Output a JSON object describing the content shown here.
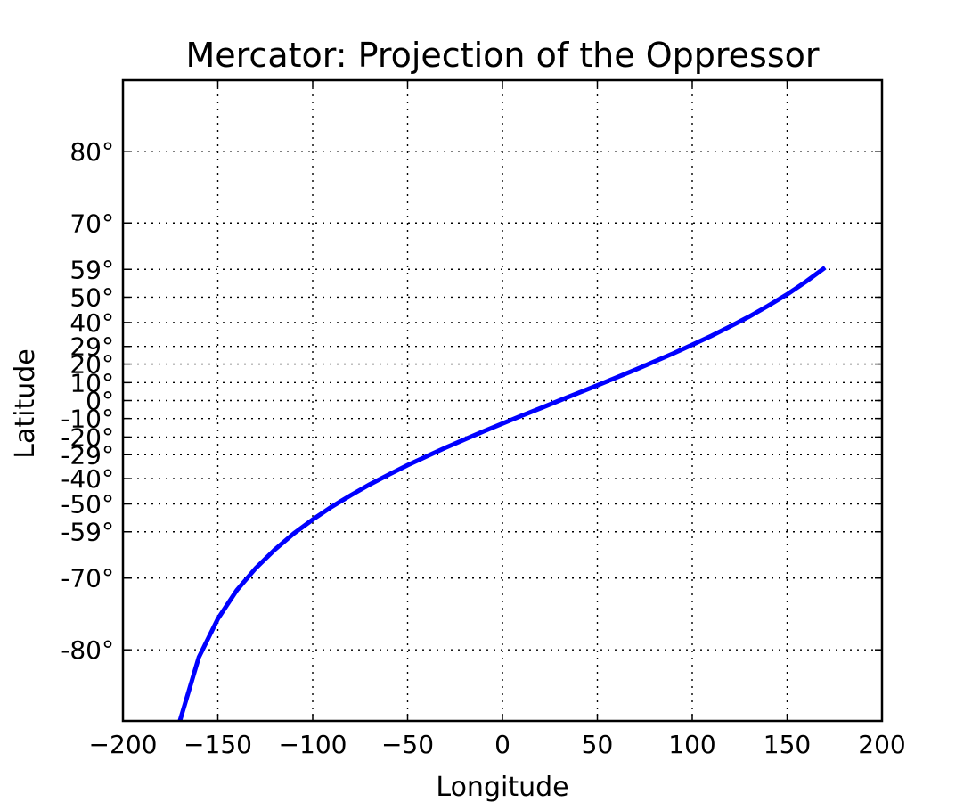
{
  "chart_data": {
    "type": "line",
    "title": "Mercator: Projection of the Oppressor",
    "xlabel": "Longitude",
    "ylabel": "Latitude",
    "xlim": [
      -200,
      200
    ],
    "y_scale": "mercator",
    "ylim_degrees": [
      -85,
      85
    ],
    "grid": true,
    "x_ticks": [
      -200,
      -150,
      -100,
      -50,
      0,
      50,
      100,
      150,
      200
    ],
    "x_tick_labels": [
      "−200",
      "−150",
      "−100",
      "−50",
      "0",
      "50",
      "100",
      "150",
      "200"
    ],
    "y_ticks": [
      -80,
      -70,
      -59,
      -50,
      -40,
      -29,
      -20,
      -10,
      0,
      10,
      20,
      29,
      40,
      50,
      59,
      70,
      80
    ],
    "y_tick_labels": [
      "-80°",
      "-70°",
      "-59°",
      "-50°",
      "-40°",
      "-29°",
      "-20°",
      "-10°",
      "0°",
      "10°",
      "20°",
      "29°",
      "40°",
      "50°",
      "59°",
      "70°",
      "80°"
    ],
    "series": [
      {
        "color": "#0000ff",
        "x": [
          -170,
          -160,
          -150,
          -140,
          -130,
          -120,
          -110,
          -100,
          -90,
          -80,
          -70,
          -60,
          -50,
          -40,
          -30,
          -20,
          -10,
          0,
          10,
          20,
          30,
          40,
          50,
          60,
          70,
          80,
          90,
          100,
          110,
          120,
          130,
          140,
          150,
          160,
          170
        ],
        "y": [
          -85,
          -80.7,
          -76.5,
          -72.2,
          -68,
          -63.8,
          -59.5,
          -55.3,
          -51,
          -46.8,
          -42.5,
          -38.3,
          -34,
          -29.8,
          -25.5,
          -21.3,
          -17,
          -12.8,
          -8.5,
          -4.3,
          0,
          4.3,
          8.5,
          12.8,
          17,
          21.3,
          25.5,
          29.8,
          34,
          38.3,
          42.5,
          46.8,
          51,
          55.3,
          59.5
        ]
      }
    ]
  }
}
